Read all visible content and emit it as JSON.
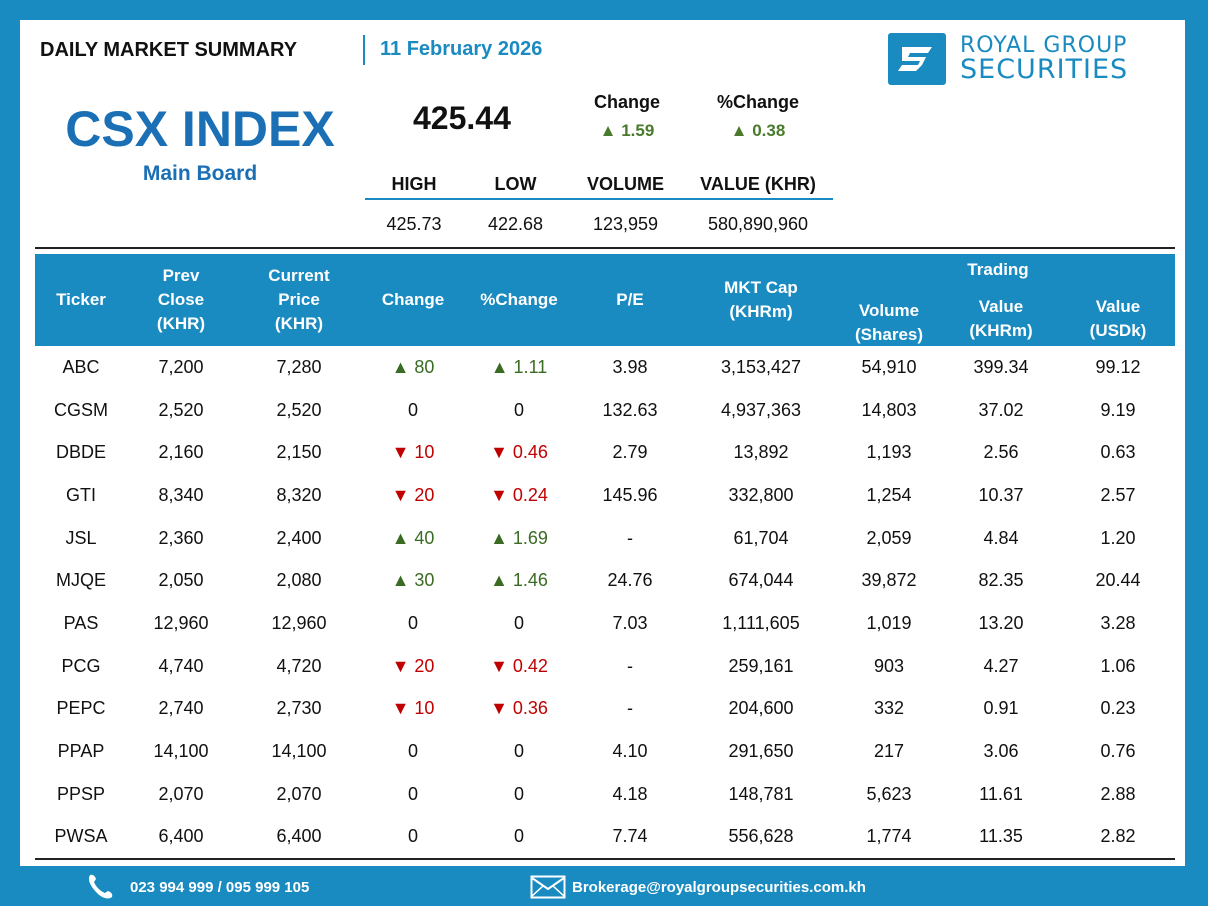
{
  "header": {
    "title": "DAILY MARKET SUMMARY",
    "date": "11 February 2026",
    "logo_line1": "ROYAL GROUP",
    "logo_line2": "SECURITIES"
  },
  "index": {
    "name": "CSX INDEX",
    "board": "Main Board",
    "value": "425.44",
    "change_label": "Change",
    "change_value": "▲ 1.59",
    "pct_change_label": "%Change",
    "pct_change_value": "▲ 0.38"
  },
  "stats": {
    "headers": [
      "HIGH",
      "LOW",
      "VOLUME",
      "VALUE (KHR)"
    ],
    "values": [
      "425.73",
      "422.68",
      "123,959",
      "580,890,960"
    ]
  },
  "table": {
    "headers": {
      "ticker": "Ticker",
      "prev_close": "Prev\nClose\n(KHR)",
      "current_price": "Current\nPrice\n(KHR)",
      "change": "Change",
      "pct_change": "%Change",
      "pe": "P/E",
      "mkt_cap": "MKT Cap\n(KHRm)",
      "trading": "Trading",
      "volume": "Volume\n(Shares)",
      "value_khr": "Value\n(KHRm)",
      "value_usd": "Value\n(USDk)"
    },
    "rows": [
      {
        "ticker": "ABC",
        "prev": "7,200",
        "cur": "7,280",
        "chg": "▲ 80",
        "pct": "▲ 1.11",
        "dir": "up",
        "pe": "3.98",
        "cap": "3,153,427",
        "vol": "54,910",
        "vkhr": "399.34",
        "vusd": "99.12"
      },
      {
        "ticker": "CGSM",
        "prev": "2,520",
        "cur": "2,520",
        "chg": "0",
        "pct": "0",
        "dir": "flat",
        "pe": "132.63",
        "cap": "4,937,363",
        "vol": "14,803",
        "vkhr": "37.02",
        "vusd": "9.19"
      },
      {
        "ticker": "DBDE",
        "prev": "2,160",
        "cur": "2,150",
        "chg": "▼ 10",
        "pct": "▼ 0.46",
        "dir": "down",
        "pe": "2.79",
        "cap": "13,892",
        "vol": "1,193",
        "vkhr": "2.56",
        "vusd": "0.63"
      },
      {
        "ticker": "GTI",
        "prev": "8,340",
        "cur": "8,320",
        "chg": "▼ 20",
        "pct": "▼ 0.24",
        "dir": "down",
        "pe": "145.96",
        "cap": "332,800",
        "vol": "1,254",
        "vkhr": "10.37",
        "vusd": "2.57"
      },
      {
        "ticker": "JSL",
        "prev": "2,360",
        "cur": "2,400",
        "chg": "▲ 40",
        "pct": "▲ 1.69",
        "dir": "up",
        "pe": "-",
        "cap": "61,704",
        "vol": "2,059",
        "vkhr": "4.84",
        "vusd": "1.20"
      },
      {
        "ticker": "MJQE",
        "prev": "2,050",
        "cur": "2,080",
        "chg": "▲ 30",
        "pct": "▲ 1.46",
        "dir": "up",
        "pe": "24.76",
        "cap": "674,044",
        "vol": "39,872",
        "vkhr": "82.35",
        "vusd": "20.44"
      },
      {
        "ticker": "PAS",
        "prev": "12,960",
        "cur": "12,960",
        "chg": "0",
        "pct": "0",
        "dir": "flat",
        "pe": "7.03",
        "cap": "1,111,605",
        "vol": "1,019",
        "vkhr": "13.20",
        "vusd": "3.28"
      },
      {
        "ticker": "PCG",
        "prev": "4,740",
        "cur": "4,720",
        "chg": "▼ 20",
        "pct": "▼ 0.42",
        "dir": "down",
        "pe": "-",
        "cap": "259,161",
        "vol": "903",
        "vkhr": "4.27",
        "vusd": "1.06"
      },
      {
        "ticker": "PEPC",
        "prev": "2,740",
        "cur": "2,730",
        "chg": "▼ 10",
        "pct": "▼ 0.36",
        "dir": "down",
        "pe": "-",
        "cap": "204,600",
        "vol": "332",
        "vkhr": "0.91",
        "vusd": "0.23"
      },
      {
        "ticker": "PPAP",
        "prev": "14,100",
        "cur": "14,100",
        "chg": "0",
        "pct": "0",
        "dir": "flat",
        "pe": "4.10",
        "cap": "291,650",
        "vol": "217",
        "vkhr": "3.06",
        "vusd": "0.76"
      },
      {
        "ticker": "PPSP",
        "prev": "2,070",
        "cur": "2,070",
        "chg": "0",
        "pct": "0",
        "dir": "flat",
        "pe": "4.18",
        "cap": "148,781",
        "vol": "5,623",
        "vkhr": "11.61",
        "vusd": "2.88"
      },
      {
        "ticker": "PWSA",
        "prev": "6,400",
        "cur": "6,400",
        "chg": "0",
        "pct": "0",
        "dir": "flat",
        "pe": "7.74",
        "cap": "556,628",
        "vol": "1,774",
        "vkhr": "11.35",
        "vusd": "2.82"
      }
    ]
  },
  "footer": {
    "phone": "023 994 999 / 095 999 105",
    "email": "Brokerage@royalgroupsecurities.com.kh",
    "phone_icon": "phone-icon",
    "email_icon": "envelope-icon"
  },
  "colors": {
    "brand_blue": "#1a8bc1",
    "up_green": "#3a6b22",
    "down_red": "#c00000"
  }
}
